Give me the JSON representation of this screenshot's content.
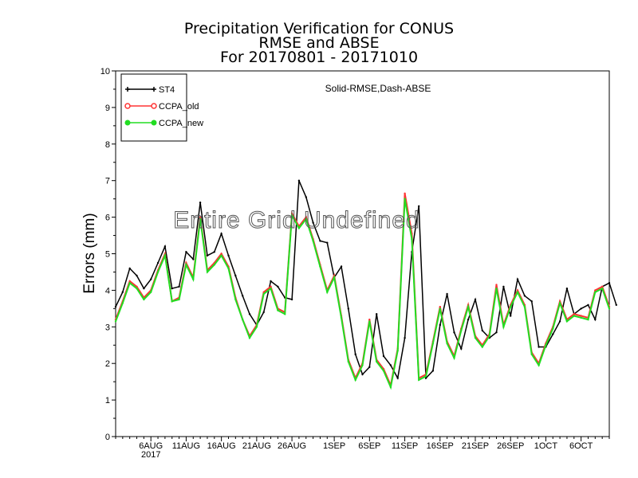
{
  "title_lines": [
    "Precipitation Verification for CONUS",
    "RMSE and ABSE",
    "For 20170801 - 20171010"
  ],
  "chart_data": {
    "type": "line",
    "ylabel": "Errors (mm)",
    "ylim": [
      0,
      10
    ],
    "yticks": [
      "0",
      "1",
      "2",
      "3",
      "4",
      "5",
      "6",
      "7",
      "8",
      "9",
      "10"
    ],
    "xlim_days": [
      1,
      71
    ],
    "x_tick_labels": [
      {
        "label": "6AUG",
        "sub": "2017",
        "day": 6
      },
      {
        "label": "11AUG",
        "day": 11
      },
      {
        "label": "16AUG",
        "day": 16
      },
      {
        "label": "21AUG",
        "day": 21
      },
      {
        "label": "26AUG",
        "day": 26
      },
      {
        "label": "1SEP",
        "day": 32
      },
      {
        "label": "6SEP",
        "day": 37
      },
      {
        "label": "11SEP",
        "day": 42
      },
      {
        "label": "16SEP",
        "day": 47
      },
      {
        "label": "21SEP",
        "day": 52
      },
      {
        "label": "26SEP",
        "day": 57
      },
      {
        "label": "1OCT",
        "day": 62
      },
      {
        "label": "6OCT",
        "day": 67
      }
    ],
    "annotation": "Solid-RMSE,Dash-ABSE",
    "overlay_text": "Entire Grid Undefined",
    "legend": {
      "placement": "top-left"
    },
    "series": [
      {
        "name": "ST4",
        "color": "#000000",
        "marker": "plus",
        "values": [
          3.55,
          3.95,
          4.6,
          4.4,
          4.05,
          4.3,
          4.75,
          5.2,
          4.05,
          4.1,
          5.05,
          4.85,
          6.4,
          4.95,
          5.05,
          5.55,
          4.95,
          4.4,
          3.85,
          3.35,
          3.05,
          3.4,
          4.25,
          4.1,
          3.8,
          3.75,
          7.0,
          6.55,
          5.85,
          5.35,
          5.3,
          4.35,
          4.65,
          3.5,
          2.25,
          1.7,
          1.9,
          3.35,
          2.2,
          1.95,
          1.6,
          2.7,
          5.05,
          6.3,
          1.6,
          1.8,
          3.05,
          3.9,
          2.85,
          2.4,
          3.2,
          3.75,
          2.9,
          2.7,
          2.85,
          4.1,
          3.3,
          4.3,
          3.85,
          3.7,
          2.45,
          2.45,
          2.8,
          3.15,
          4.05,
          3.35,
          3.5,
          3.6,
          3.2,
          4.1,
          4.2,
          3.6
        ]
      },
      {
        "name": "CCPA_old",
        "color": "#ff3333",
        "marker": "circle",
        "values": [
          3.2,
          3.7,
          4.25,
          4.1,
          3.8,
          4.0,
          4.55,
          5.0,
          3.7,
          3.8,
          4.75,
          4.35,
          6.0,
          4.55,
          4.75,
          5.0,
          4.65,
          3.8,
          3.2,
          2.75,
          3.05,
          3.95,
          4.1,
          3.5,
          3.4,
          6.1,
          5.75,
          6.0,
          5.4,
          4.7,
          4.0,
          4.4,
          3.3,
          2.1,
          1.6,
          2.0,
          3.2,
          2.1,
          1.85,
          1.4,
          2.4,
          6.65,
          5.55,
          1.6,
          1.7,
          2.6,
          3.55,
          2.6,
          2.2,
          2.95,
          3.6,
          2.75,
          2.5,
          2.8,
          4.15,
          3.05,
          3.6,
          4.0,
          3.6,
          2.3,
          2.0,
          2.55,
          3.0,
          3.7,
          3.2,
          3.35,
          3.3,
          3.25,
          4.0,
          4.1,
          3.55
        ]
      },
      {
        "name": "CCPA_new",
        "color": "#22dd22",
        "marker": "dot",
        "values": [
          3.15,
          3.65,
          4.2,
          4.05,
          3.75,
          3.95,
          4.5,
          4.95,
          3.7,
          3.75,
          4.7,
          4.3,
          5.95,
          4.5,
          4.7,
          4.95,
          4.6,
          3.75,
          3.2,
          2.7,
          3.0,
          3.9,
          4.05,
          3.45,
          3.35,
          6.05,
          5.7,
          5.95,
          5.35,
          4.65,
          3.95,
          4.35,
          3.25,
          2.05,
          1.55,
          1.95,
          3.15,
          2.05,
          1.8,
          1.35,
          2.35,
          6.5,
          5.4,
          1.55,
          1.65,
          2.55,
          3.5,
          2.55,
          2.15,
          2.9,
          3.55,
          2.7,
          2.45,
          2.75,
          4.05,
          3.0,
          3.55,
          3.95,
          3.55,
          2.25,
          1.95,
          2.5,
          2.95,
          3.65,
          3.15,
          3.3,
          3.25,
          3.2,
          3.95,
          4.05,
          3.5
        ]
      }
    ]
  }
}
